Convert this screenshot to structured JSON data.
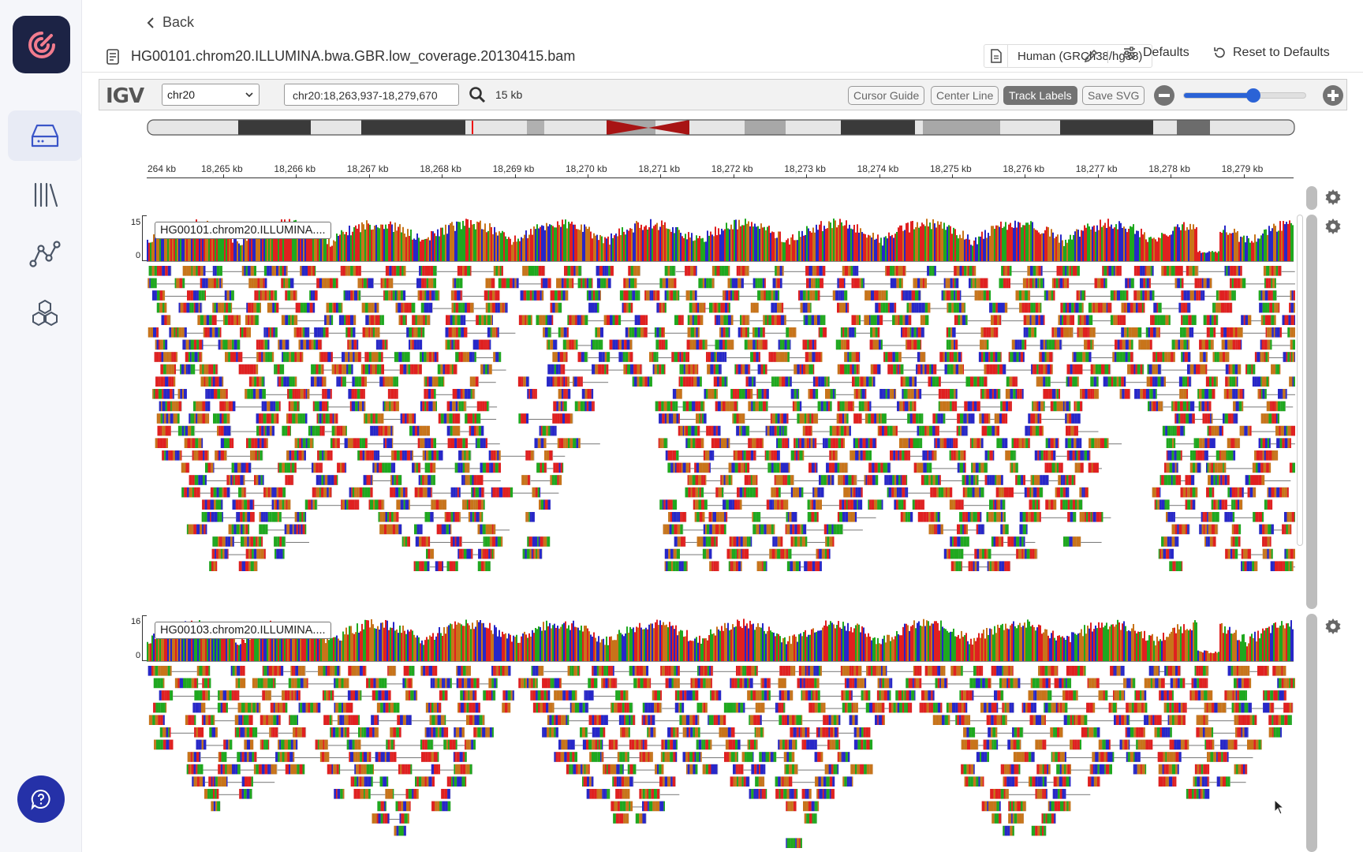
{
  "nav": {
    "items": [
      {
        "name": "storage-icon",
        "active": true
      },
      {
        "name": "library-icon",
        "active": false
      },
      {
        "name": "workflow-icon",
        "active": false
      },
      {
        "name": "hexagons-icon",
        "active": false
      }
    ]
  },
  "header": {
    "back_label": "Back",
    "file_name": "HG00101.chrom20.ILLUMINA.bwa.GBR.low_coverage.20130415.bam",
    "genome": "Human (GRCh38/hg38)",
    "defaults_label": "Defaults",
    "reset_label": "Reset to Defaults"
  },
  "igv": {
    "logo": "IGV",
    "chromosome": "chr20",
    "locus": "chr20:18,263,937-18,279,670",
    "span": "15 kb",
    "buttons": {
      "cursor_guide": "Cursor Guide",
      "center_line": "Center Line",
      "track_labels": "Track Labels",
      "save_svg": "Save SVG"
    },
    "zoom_level": 0.57
  },
  "ruler": {
    "first_label": "264 kb",
    "ticks": [
      "18,265 kb",
      "18,266 kb",
      "18,267 kb",
      "18,268 kb",
      "18,269 kb",
      "18,270 kb",
      "18,271 kb",
      "18,272 kb",
      "18,273 kb",
      "18,274 kb",
      "18,275 kb",
      "18,276 kb",
      "18,277 kb",
      "18,278 kb",
      "18,279 kb"
    ]
  },
  "tracks": [
    {
      "label": "HG00101.chrom20.ILLUMINA....",
      "max": "15",
      "min": "0"
    },
    {
      "label": "HG00103.chrom20.ILLUMINA....",
      "max": "16",
      "min": "0"
    }
  ],
  "colors": {
    "A": "#1fa81f",
    "C": "#2727c8",
    "G": "#c8741a",
    "T": "#e02020",
    "nav_bg": "#f5f6fa",
    "logo_bg": "#1c2345",
    "help_bg": "#2531a8",
    "accent": "#e8ebf5"
  }
}
